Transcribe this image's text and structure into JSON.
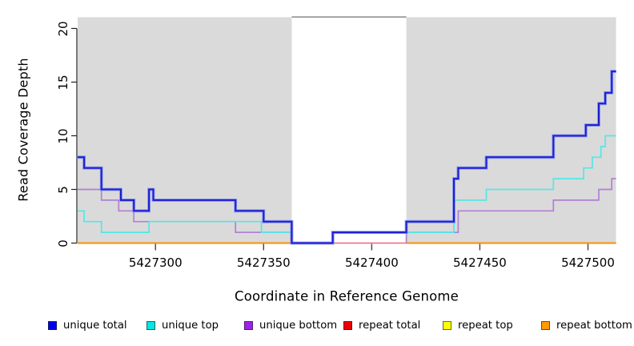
{
  "y_axis": {
    "title": "Read Coverage Depth",
    "ticks": [
      0,
      5,
      10,
      15,
      20
    ],
    "range": [
      0,
      20
    ]
  },
  "x_axis": {
    "title": "Coordinate in Reference Genome",
    "ticks": [
      5427300,
      5427350,
      5427400,
      5427450,
      5427500
    ],
    "range": [
      5427264,
      5427513
    ]
  },
  "legend": {
    "items": [
      {
        "name": "unique-total",
        "label": "unique total",
        "color": "#0000EE"
      },
      {
        "name": "unique-top",
        "label": "unique top",
        "color": "#00E6E6"
      },
      {
        "name": "unique-bottom",
        "label": "unique bottom",
        "color": "#A020F0"
      },
      {
        "name": "repeat-total",
        "label": "repeat total",
        "color": "#EE0000"
      },
      {
        "name": "repeat-top",
        "label": "repeat top",
        "color": "#FFFF00"
      },
      {
        "name": "repeat-bottom",
        "label": "repeat bottom",
        "color": "#FF9900"
      }
    ]
  },
  "chart_data": {
    "type": "step-line",
    "title": "",
    "xlabel": "Coordinate in Reference Genome",
    "ylabel": "Read Coverage Depth",
    "xlim": [
      5427264,
      5427513
    ],
    "ylim": [
      0,
      20
    ],
    "grid": false,
    "background_color": "#DADADA",
    "shaded_regions": [
      {
        "from": 5427264,
        "to": 5427363
      },
      {
        "from": 5427416,
        "to": 5427513
      }
    ],
    "gap_region": {
      "from": 5427363,
      "to": 5427416
    },
    "series": [
      {
        "name": "repeat top",
        "color": "#F2F200",
        "width": 1.2,
        "lines": [
          [
            [
              5427264,
              0
            ],
            [
              5427363,
              0
            ]
          ],
          [
            [
              5427416,
              0
            ],
            [
              5427513,
              0
            ]
          ]
        ]
      },
      {
        "name": "repeat total",
        "color": "#E8677F",
        "width": 1.5,
        "lines": [
          [
            [
              5427382,
              0
            ],
            [
              5427416,
              0
            ]
          ]
        ]
      },
      {
        "name": "repeat bottom",
        "color": "#FF8F00",
        "width": 2,
        "lines": [
          [
            [
              5427264,
              0
            ],
            [
              5427363,
              0
            ]
          ],
          [
            [
              5427416,
              0
            ],
            [
              5427513,
              0
            ]
          ]
        ]
      },
      {
        "name": "unique bottom",
        "color": "#B27FD6",
        "width": 1.7,
        "lines": [
          [
            [
              5427264,
              5
            ],
            [
              5427275,
              4
            ],
            [
              5427283,
              3
            ],
            [
              5427290,
              2
            ],
            [
              5427337,
              1
            ],
            [
              5427363,
              0
            ]
          ],
          [
            [
              5427416,
              0
            ],
            [
              5427416,
              1
            ],
            [
              5427440,
              3
            ],
            [
              5427484,
              4
            ],
            [
              5427505,
              5
            ],
            [
              5427511,
              6
            ],
            [
              5427513,
              6
            ]
          ]
        ]
      },
      {
        "name": "unique top",
        "color": "#55E6E6",
        "width": 1.7,
        "lines": [
          [
            [
              5427264,
              3
            ],
            [
              5427267,
              2
            ],
            [
              5427275,
              1
            ],
            [
              5427297,
              2
            ],
            [
              5427349,
              1
            ],
            [
              5427363,
              0
            ],
            [
              5427382,
              1
            ],
            [
              5427438,
              4
            ],
            [
              5427453,
              5
            ],
            [
              5427484,
              6
            ],
            [
              5427498,
              7
            ],
            [
              5427502,
              8
            ],
            [
              5427506,
              9
            ],
            [
              5427508,
              10
            ],
            [
              5427513,
              10
            ]
          ]
        ]
      },
      {
        "name": "unique total",
        "color": "#1E1ED2",
        "halo": "#8893EC",
        "width": 2,
        "lines": [
          [
            [
              5427264,
              8
            ],
            [
              5427267,
              7
            ],
            [
              5427275,
              5
            ],
            [
              5427284,
              4
            ],
            [
              5427290,
              3
            ],
            [
              5427297,
              5
            ],
            [
              5427299,
              4
            ],
            [
              5427337,
              3
            ],
            [
              5427350,
              2
            ],
            [
              5427363,
              0
            ],
            [
              5427382,
              1
            ],
            [
              5427416,
              2
            ],
            [
              5427438,
              6
            ],
            [
              5427440,
              7
            ],
            [
              5427453,
              8
            ],
            [
              5427484,
              10
            ],
            [
              5427499,
              11
            ],
            [
              5427505,
              13
            ],
            [
              5427508,
              14
            ],
            [
              5427511,
              16
            ],
            [
              5427513,
              16
            ]
          ]
        ]
      }
    ]
  }
}
